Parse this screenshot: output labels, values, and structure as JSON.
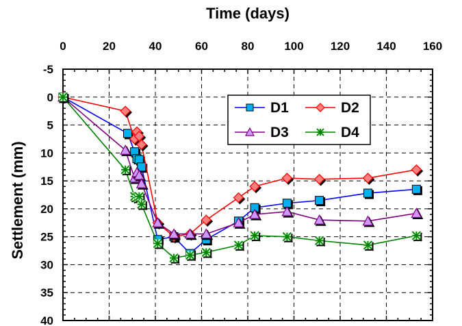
{
  "chart_data": {
    "type": "line",
    "title": "",
    "xlabel": "Time (days)",
    "ylabel": "Settlement (mm)",
    "xlim": [
      0,
      160
    ],
    "ylim": [
      -5,
      40
    ],
    "y_inverted": true,
    "x_axis_position": "top",
    "x_ticks": [
      "0",
      "20",
      "40",
      "60",
      "80",
      "100",
      "120",
      "140",
      "160"
    ],
    "y_ticks": [
      "-5",
      "0",
      "5",
      "10",
      "15",
      "20",
      "25",
      "30",
      "35",
      "40"
    ],
    "grid": true,
    "grid_style": "dashed",
    "legend_position": "top-right",
    "series": [
      {
        "name": "D1",
        "color": "#0000ff",
        "marker": "square",
        "marker_color": "#00b0f0",
        "x": [
          0,
          28,
          31,
          32,
          33,
          34,
          41,
          48,
          55,
          62,
          76,
          83,
          97,
          111,
          132,
          153
        ],
        "y": [
          0,
          6.5,
          9.8,
          11,
          11.2,
          12.5,
          25.5,
          25,
          28,
          25.5,
          22.2,
          19.8,
          19,
          18.5,
          17.2,
          16.5
        ]
      },
      {
        "name": "D2",
        "color": "#ff0000",
        "marker": "diamond",
        "marker_color": "#ff7f7f",
        "x": [
          0,
          27,
          31,
          32,
          33,
          34,
          41,
          48,
          55,
          62,
          76,
          83,
          97,
          111,
          132,
          153
        ],
        "y": [
          0,
          2.5,
          7.5,
          6.2,
          7,
          8.5,
          22.5,
          25,
          24.5,
          22,
          18,
          16,
          14.5,
          14.7,
          14.5,
          13
        ]
      },
      {
        "name": "D3",
        "color": "#7f007f",
        "marker": "triangle",
        "marker_color": "#cc99ff",
        "x": [
          0,
          27,
          31,
          32,
          33,
          34,
          41,
          48,
          55,
          62,
          76,
          83,
          97,
          111,
          132,
          153
        ],
        "y": [
          0,
          9.5,
          14.5,
          13.5,
          14,
          15.5,
          22.5,
          24.5,
          24.5,
          24.5,
          22.5,
          21,
          20.5,
          22,
          22.2,
          20.8
        ]
      },
      {
        "name": "D4",
        "color": "#008000",
        "marker": "asterisk",
        "marker_color": "#ccffcc",
        "x": [
          0,
          27,
          31,
          32,
          33,
          34,
          41,
          48,
          55,
          62,
          76,
          83,
          97,
          111,
          132,
          153
        ],
        "y": [
          0,
          13,
          17.8,
          18,
          17.8,
          19.2,
          26.2,
          28.8,
          28.3,
          27.8,
          26.5,
          24.8,
          25,
          25.7,
          26.5,
          24.8
        ]
      }
    ]
  }
}
